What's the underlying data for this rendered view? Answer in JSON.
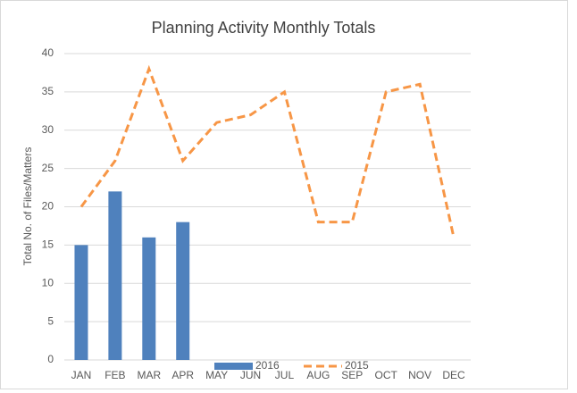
{
  "chart_data": {
    "type": "bar",
    "title": "Planning Activity Monthly Totals",
    "y_label": "Total No. of Files/Matters",
    "categories": [
      "JAN",
      "FEB",
      "MAR",
      "APR",
      "MAY",
      "JUN",
      "JUL",
      "AUG",
      "SEP",
      "OCT",
      "NOV",
      "DEC"
    ],
    "series": [
      {
        "name": "2016",
        "type": "bar",
        "color": "#4f81bd",
        "values": [
          15,
          22,
          16,
          18,
          null,
          null,
          null,
          null,
          null,
          null,
          null,
          null
        ]
      },
      {
        "name": "2015",
        "type": "line",
        "dashed": true,
        "color": "#f79646",
        "values": [
          20,
          26,
          38,
          26,
          31,
          32,
          35,
          18,
          18,
          35,
          36,
          16
        ]
      }
    ],
    "ylim": [
      0,
      40
    ],
    "yticks": [
      0,
      5,
      10,
      15,
      20,
      25,
      30,
      35,
      40
    ],
    "grid": true,
    "legend": "bottom"
  }
}
